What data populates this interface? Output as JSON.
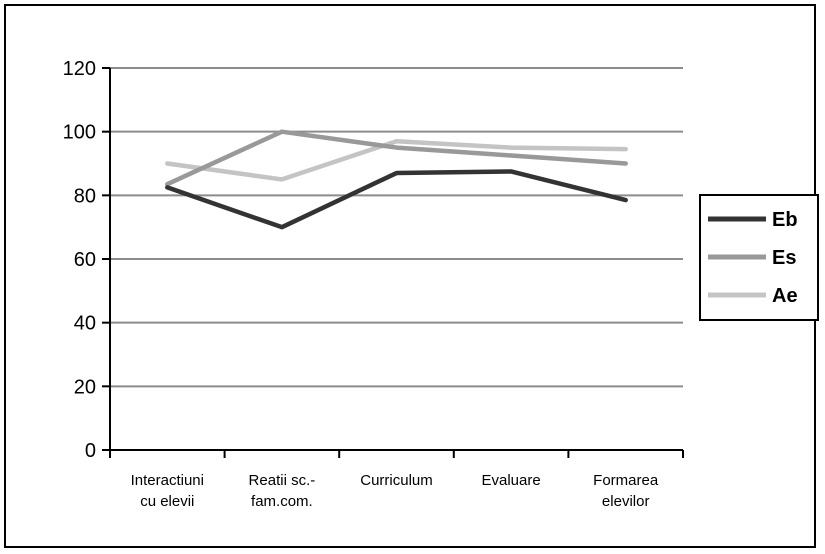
{
  "chart_data": {
    "type": "line",
    "categories": [
      [
        "Interactiuni",
        "cu elevii"
      ],
      [
        "Reatii sc.-",
        "fam.com."
      ],
      [
        "Curriculum"
      ],
      [
        "Evaluare"
      ],
      [
        "Formarea",
        "elevilor"
      ]
    ],
    "ylim": [
      0,
      120
    ],
    "yticks": [
      0,
      20,
      40,
      60,
      80,
      100,
      120
    ],
    "grid": true,
    "legend_position": "right",
    "series": [
      {
        "name": "Eb",
        "color": "#333333",
        "values": [
          82.5,
          70,
          87,
          87.5,
          78.5
        ]
      },
      {
        "name": "Es",
        "color": "#999999",
        "values": [
          83.5,
          100,
          95,
          92.5,
          90
        ]
      },
      {
        "name": "Ae",
        "color": "#c4c4c4",
        "values": [
          90,
          85,
          97,
          95,
          94.5
        ]
      }
    ]
  }
}
